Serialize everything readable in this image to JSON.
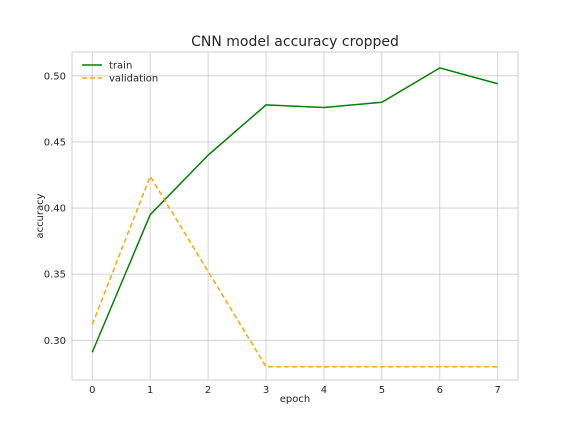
{
  "chart_data": {
    "type": "line",
    "title": "CNN model accuracy cropped",
    "xlabel": "epoch",
    "ylabel": "accuracy",
    "x": [
      0,
      1,
      2,
      3,
      4,
      5,
      6,
      7
    ],
    "xlim": [
      -0.35,
      7.35
    ],
    "ylim": [
      0.27,
      0.518
    ],
    "xticks": [
      "0",
      "1",
      "2",
      "3",
      "4",
      "5",
      "6",
      "7"
    ],
    "yticks": [
      0.3,
      0.35,
      0.4,
      0.45,
      0.5
    ],
    "ytick_labels": [
      "0.30",
      "0.35",
      "0.40",
      "0.45",
      "0.50"
    ],
    "grid": true,
    "legend_position": "top-left",
    "series": [
      {
        "name": "train",
        "color": "#008000",
        "dash": "solid",
        "values": [
          0.291,
          0.395,
          0.44,
          0.478,
          0.476,
          0.48,
          0.506,
          0.494
        ]
      },
      {
        "name": "validation",
        "color": "#FFA500",
        "dash": "dashed",
        "values": [
          0.312,
          0.424,
          0.352,
          0.28,
          0.28,
          0.28,
          0.28,
          0.28
        ]
      }
    ]
  }
}
